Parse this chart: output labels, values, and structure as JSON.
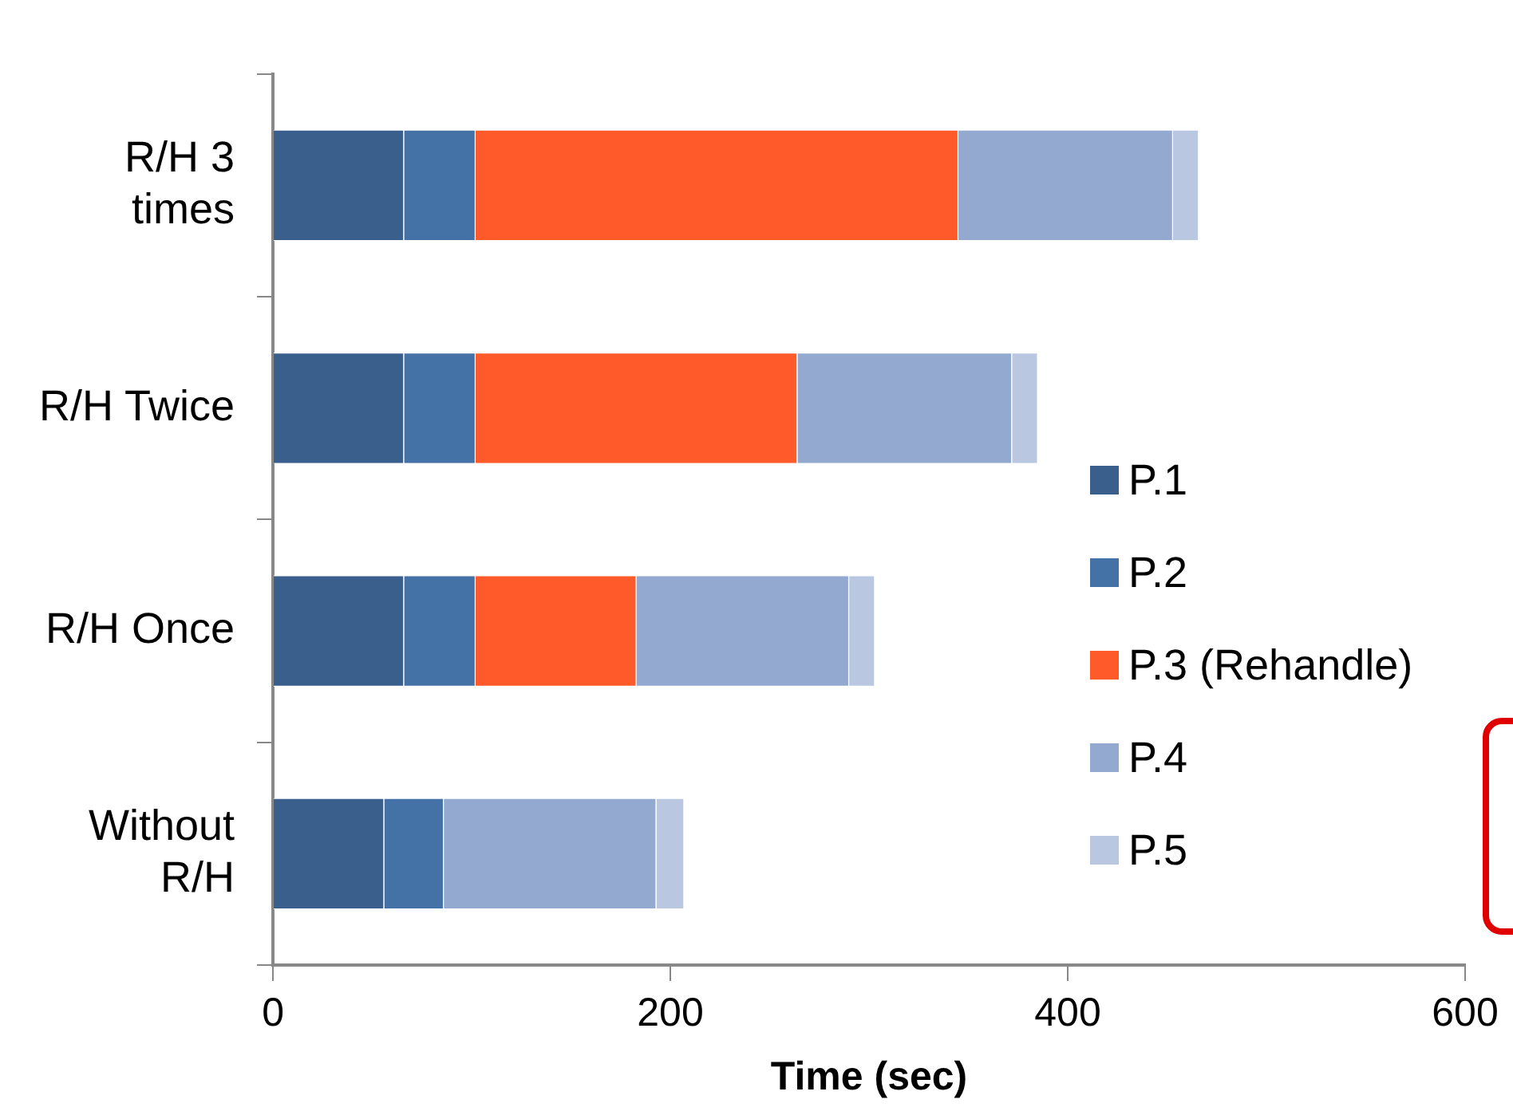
{
  "chart_data": {
    "type": "bar",
    "orientation": "horizontal",
    "stacked": true,
    "xlabel": "Time (sec)",
    "categories": [
      "R/H 3 times",
      "R/H Twice",
      "R/H Once",
      "Without R/H"
    ],
    "series": [
      {
        "name": "P.1",
        "color": "#3a5f8c",
        "values": [
          66,
          66,
          66,
          56
        ]
      },
      {
        "name": "P.2",
        "color": "#4472a6",
        "values": [
          36,
          36,
          36,
          30
        ]
      },
      {
        "name": "P.3 (Rehandle)",
        "color": "#ff5a2a",
        "values": [
          243,
          162,
          81,
          null
        ]
      },
      {
        "name": "P.4",
        "color": "#94a9cf",
        "values": [
          108,
          108,
          107,
          107
        ]
      },
      {
        "name": "P.5",
        "color": "#b9c7e0",
        "values": [
          13,
          13,
          13,
          14
        ]
      }
    ],
    "xlim": [
      0,
      600
    ],
    "xticks": [
      0,
      200,
      400,
      600
    ],
    "grid": false,
    "legend": "right"
  }
}
